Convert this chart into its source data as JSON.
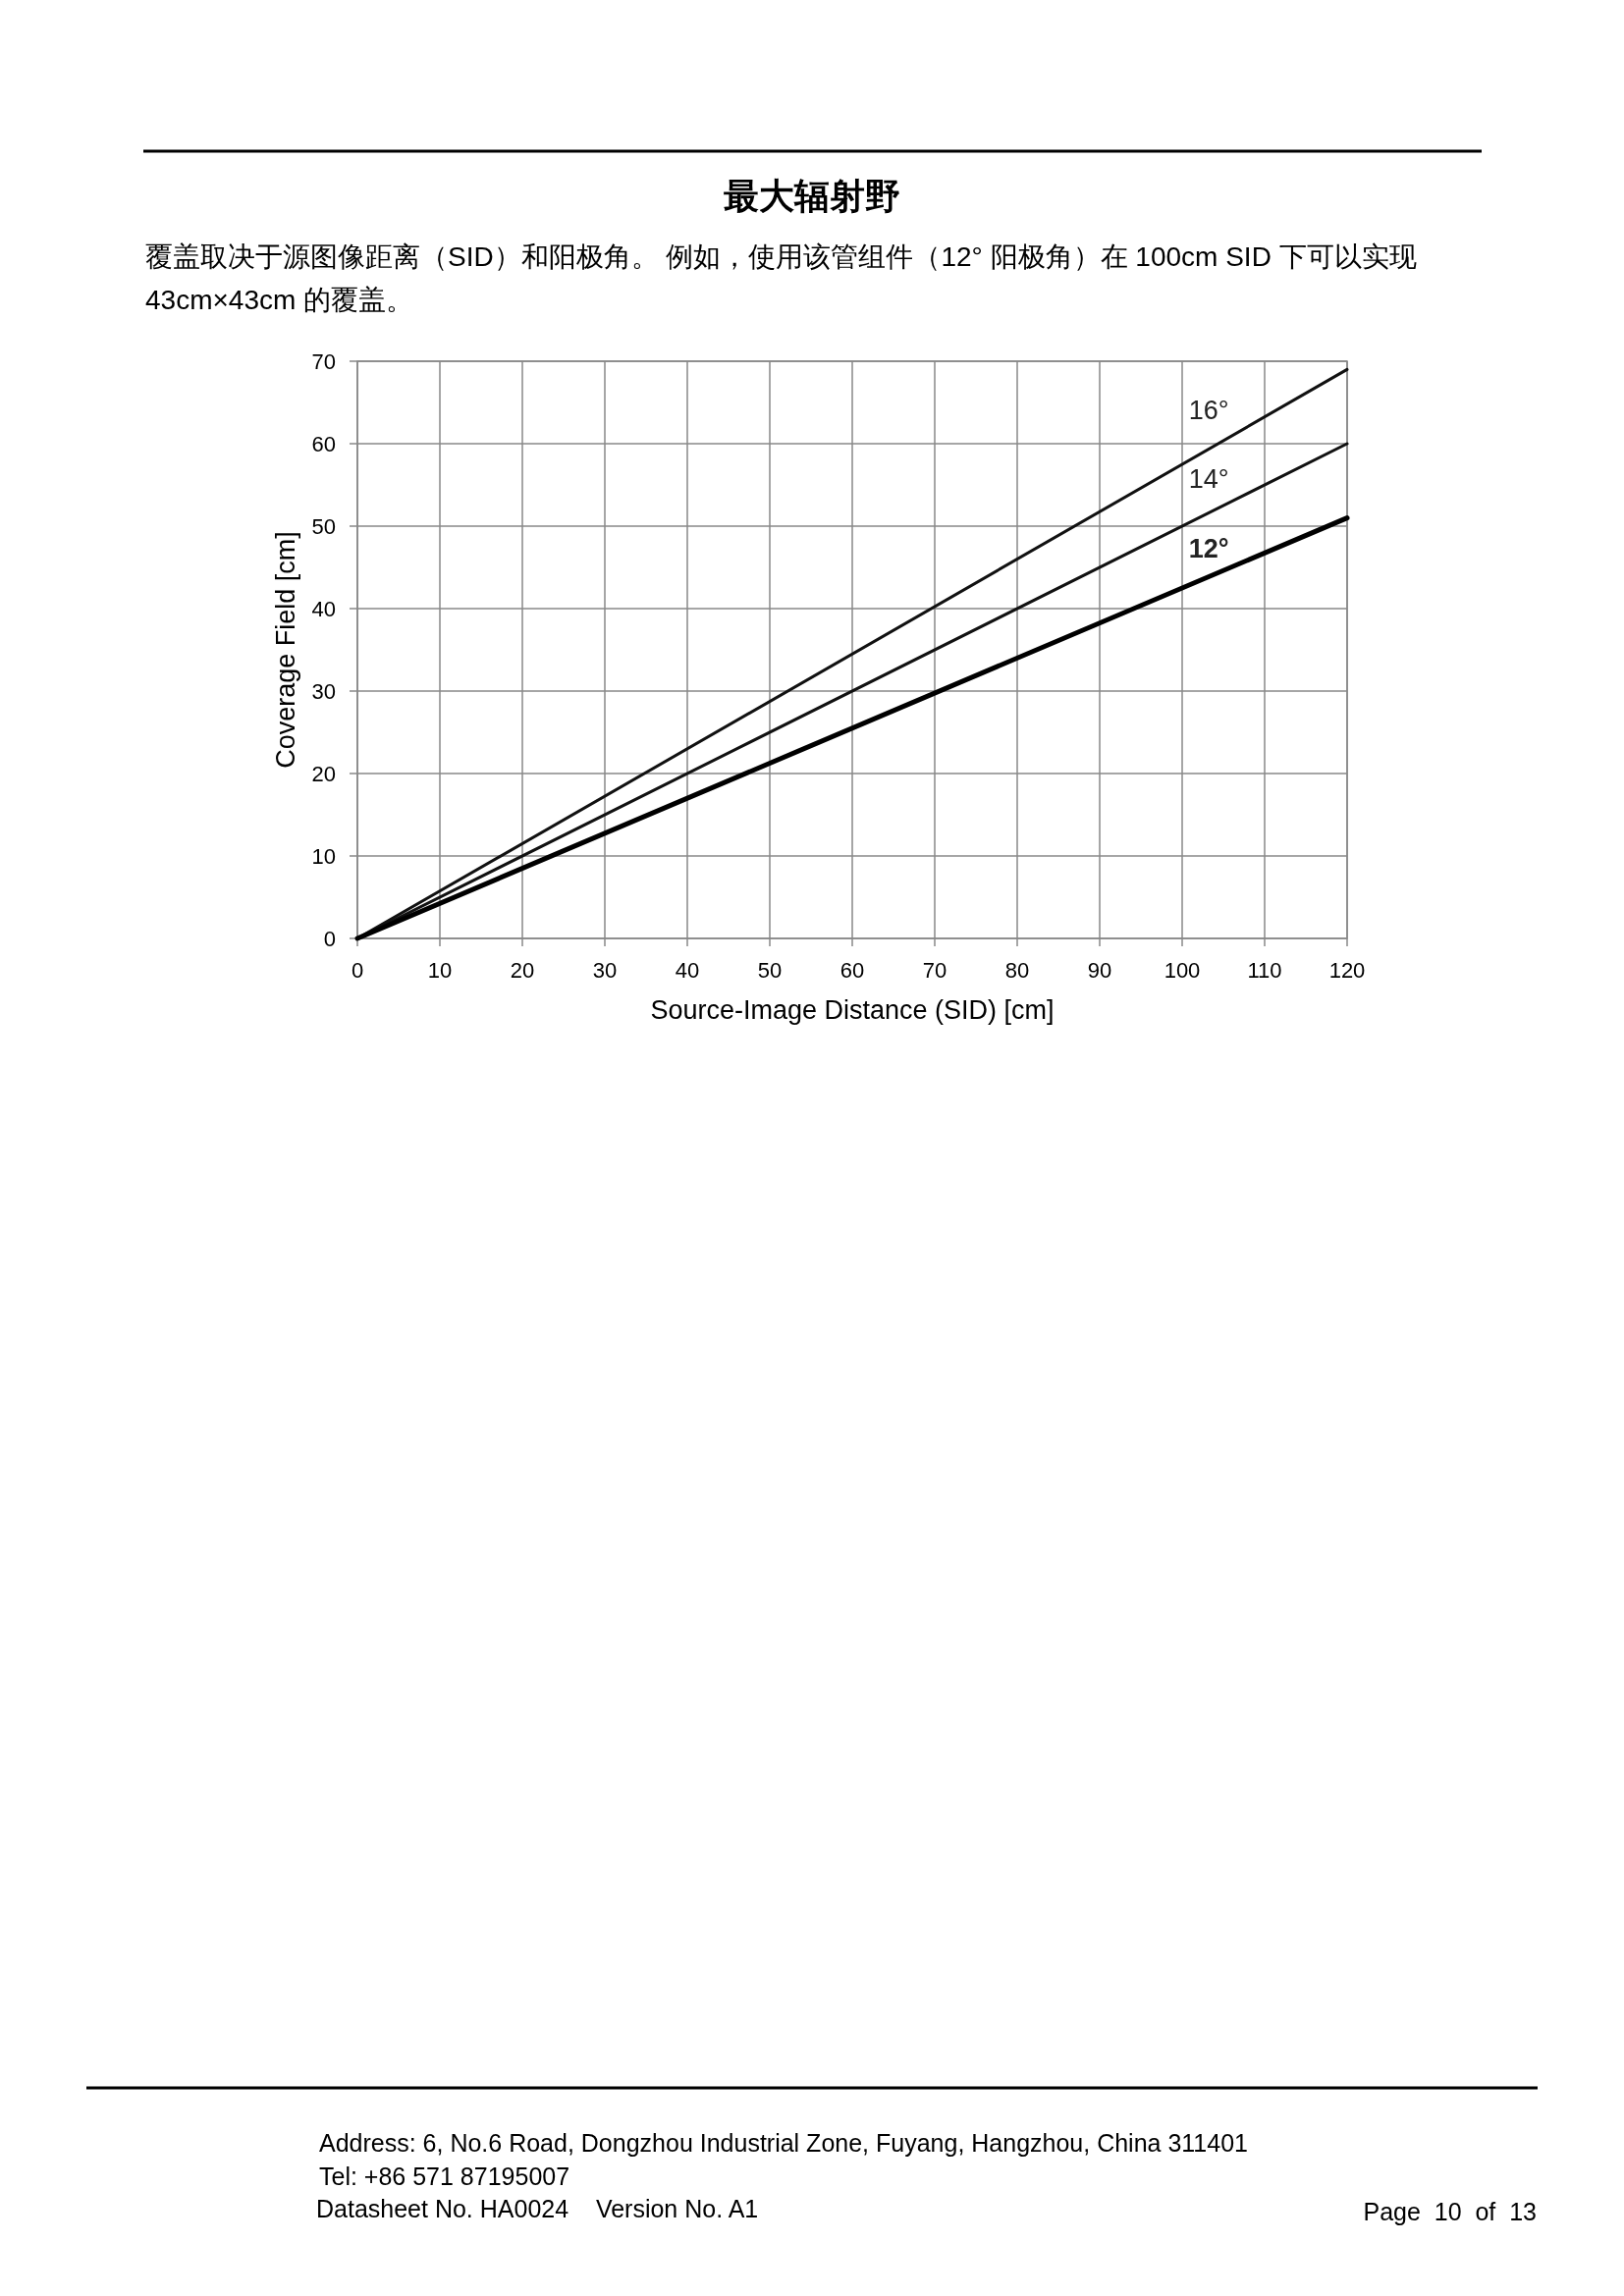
{
  "chart_data": {
    "type": "line",
    "title": "最大辐射野",
    "subtitle": "覆盖取决于源图像距离（SID）和阳极角。 例如，使用该管组件（12° 阳极角）在 100cm SID 下可以实现 43cm×43cm 的覆盖。",
    "xlabel": "Source-Image Distance (SID) [cm]",
    "ylabel": "Coverage Field [cm]",
    "x": [
      0,
      120
    ],
    "series": [
      {
        "name": "16°",
        "color": "#111111",
        "values": [
          0,
          69
        ]
      },
      {
        "name": "14°",
        "color": "#111111",
        "values": [
          0,
          60
        ]
      },
      {
        "name": "12°",
        "color": "#000000",
        "values": [
          0,
          51
        ]
      }
    ],
    "xlim": [
      0,
      120
    ],
    "ylim": [
      0,
      70
    ],
    "xticks": [
      0,
      10,
      20,
      30,
      40,
      50,
      60,
      70,
      80,
      90,
      100,
      110,
      120
    ],
    "yticks": [
      0,
      10,
      20,
      30,
      40,
      50,
      60,
      70
    ],
    "grid": true,
    "legend": false,
    "marker": "none",
    "line_style": "solid",
    "annotations": [
      "Address: 6, No.6 Road, Dongzhou Industrial Zone, Fuyang, Hangzhou, China 311401",
      "Tel: +86 571 87195007",
      "Datasheet No. HA0024    Version No. A1",
      "Page  10  of  13"
    ]
  }
}
